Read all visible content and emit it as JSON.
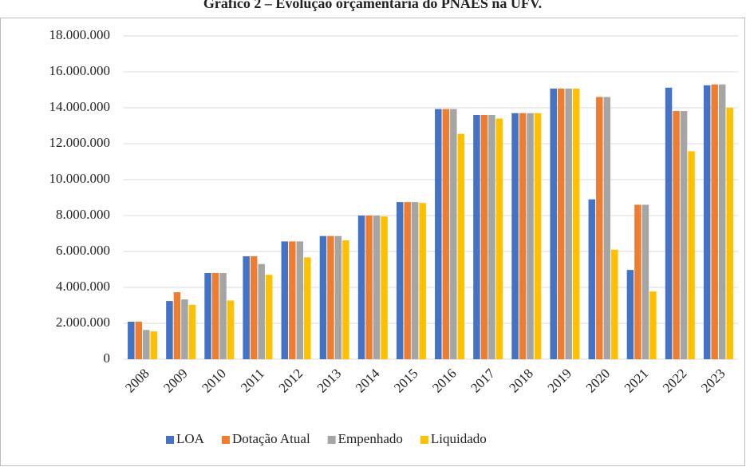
{
  "chart_data": {
    "type": "bar",
    "title": "Gráfico 2 – Evolução orçamentária do PNAES na UFV.",
    "categories": [
      "2008",
      "2009",
      "2010",
      "2011",
      "2012",
      "2013",
      "2014",
      "2015",
      "2016",
      "2017",
      "2018",
      "2019",
      "2020",
      "2021",
      "2022",
      "2023"
    ],
    "series": [
      {
        "name": "LOA",
        "color": "#4472c4",
        "values": [
          2090000,
          3240000,
          4800000,
          5730000,
          6560000,
          6860000,
          8000000,
          8750000,
          13930000,
          13600000,
          13700000,
          15070000,
          8900000,
          4970000,
          15120000,
          15250000
        ]
      },
      {
        "name": "Dotação Atual",
        "color": "#ed7d31",
        "values": [
          2090000,
          3730000,
          4800000,
          5730000,
          6560000,
          6860000,
          8000000,
          8750000,
          13930000,
          13600000,
          13700000,
          15070000,
          14600000,
          8600000,
          13820000,
          15300000
        ]
      },
      {
        "name": "Empenhado",
        "color": "#a5a5a5",
        "values": [
          1630000,
          3330000,
          4800000,
          5300000,
          6560000,
          6860000,
          8000000,
          8750000,
          13930000,
          13600000,
          13700000,
          15070000,
          14600000,
          8600000,
          13820000,
          15300000
        ]
      },
      {
        "name": "Liquidado",
        "color": "#ffc000",
        "values": [
          1550000,
          3030000,
          3270000,
          4700000,
          5670000,
          6620000,
          7950000,
          8700000,
          12550000,
          13400000,
          13700000,
          15070000,
          6100000,
          3770000,
          11580000,
          14000000
        ]
      }
    ],
    "ylim": [
      0,
      18000000
    ],
    "yticks": [
      0,
      {
        "value": 2000000,
        "label": "2.000.000"
      },
      {
        "value": 4000000,
        "label": "4.000.000"
      },
      {
        "value": 6000000,
        "label": "6.000.000"
      },
      {
        "value": 8000000,
        "label": "8.000.000"
      },
      {
        "value": 10000000,
        "label": "10.000.000"
      },
      {
        "value": 12000000,
        "label": "12.000.000"
      },
      {
        "value": 14000000,
        "label": "14.000.000"
      },
      {
        "value": 16000000,
        "label": "16.000.000"
      },
      {
        "value": 18000000,
        "label": "18.000.000"
      }
    ],
    "grid": true,
    "legend": "bottom"
  }
}
